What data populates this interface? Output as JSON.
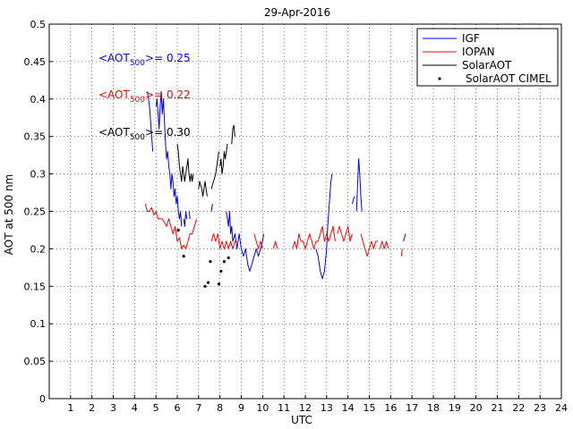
{
  "chart_data": {
    "type": "line",
    "title": "29-Apr-2016",
    "xlabel": "UTC",
    "ylabel": "AOT at 500 nm",
    "xlim": [
      0,
      24
    ],
    "ylim": [
      0,
      0.5
    ],
    "xticks": [
      1,
      2,
      3,
      4,
      5,
      6,
      7,
      8,
      9,
      10,
      11,
      12,
      13,
      14,
      15,
      16,
      17,
      18,
      19,
      20,
      21,
      22,
      23,
      24
    ],
    "yticks": [
      0,
      0.05,
      0.1,
      0.15,
      0.2,
      0.25,
      0.3,
      0.35,
      0.4,
      0.45,
      0.5
    ],
    "grid": true,
    "legend_position": "top-right",
    "colors": {
      "IGF": "#0000ff",
      "IOPAN": "#ff0000",
      "SolarAOT": "#000000",
      "SolarAOT CIMEL": "#000000"
    },
    "annotations": [
      {
        "prefix": "<AOT",
        "sub": "500",
        "suffix": ">= 0.25",
        "color": "#0000ff"
      },
      {
        "prefix": "<AOT",
        "sub": "500",
        "suffix": ">= 0.22",
        "color": "#ff0000"
      },
      {
        "prefix": "<AOT",
        "sub": "500",
        "suffix": ">= 0.30",
        "color": "#000000"
      }
    ],
    "series": [
      {
        "name": "IGF",
        "kind": "line",
        "color": "#0000ff",
        "segments": [
          [
            [
              4.6,
              0.41
            ],
            [
              4.7,
              0.39
            ],
            [
              4.75,
              0.37
            ],
            [
              4.8,
              0.35
            ],
            [
              4.85,
              0.33
            ]
          ],
          [
            [
              5.0,
              0.39
            ],
            [
              5.05,
              0.4
            ],
            [
              5.1,
              0.38
            ],
            [
              5.15,
              0.36
            ],
            [
              5.2,
              0.39
            ],
            [
              5.25,
              0.41
            ],
            [
              5.3,
              0.38
            ],
            [
              5.35,
              0.4
            ],
            [
              5.4,
              0.37
            ],
            [
              5.45,
              0.34
            ],
            [
              5.5,
              0.32
            ],
            [
              5.55,
              0.33
            ],
            [
              5.6,
              0.31
            ],
            [
              5.65,
              0.3
            ],
            [
              5.7,
              0.28
            ],
            [
              5.75,
              0.3
            ],
            [
              5.8,
              0.29
            ],
            [
              5.85,
              0.27
            ],
            [
              5.9,
              0.28
            ],
            [
              5.95,
              0.26
            ],
            [
              6.0,
              0.27
            ],
            [
              6.05,
              0.25
            ],
            [
              6.1,
              0.24
            ],
            [
              6.15,
              0.25
            ],
            [
              6.2,
              0.23
            ]
          ],
          [
            [
              6.3,
              0.24
            ],
            [
              6.35,
              0.23
            ],
            [
              6.4,
              0.25
            ],
            [
              6.45,
              0.24
            ]
          ],
          [
            [
              6.55,
              0.25
            ],
            [
              6.6,
              0.24
            ]
          ],
          [
            [
              7.6,
              0.25
            ],
            [
              7.65,
              0.26
            ]
          ],
          [
            [
              8.3,
              0.25
            ],
            [
              8.35,
              0.24
            ],
            [
              8.4,
              0.23
            ],
            [
              8.45,
              0.25
            ],
            [
              8.5,
              0.22
            ],
            [
              8.55,
              0.23
            ],
            [
              8.6,
              0.21
            ],
            [
              8.7,
              0.22
            ],
            [
              8.8,
              0.2
            ],
            [
              8.9,
              0.22
            ],
            [
              9.0,
              0.2
            ],
            [
              9.1,
              0.19
            ],
            [
              9.2,
              0.2
            ],
            [
              9.3,
              0.18
            ],
            [
              9.4,
              0.17
            ],
            [
              9.5,
              0.18
            ],
            [
              9.6,
              0.19
            ],
            [
              9.7,
              0.2
            ],
            [
              9.8,
              0.19
            ],
            [
              9.9,
              0.2
            ],
            [
              10.0,
              0.21
            ],
            [
              10.05,
              0.22
            ]
          ],
          [
            [
              12.5,
              0.2
            ],
            [
              12.6,
              0.19
            ],
            [
              12.7,
              0.17
            ],
            [
              12.8,
              0.16
            ],
            [
              12.9,
              0.17
            ],
            [
              13.0,
              0.2
            ],
            [
              13.05,
              0.23
            ],
            [
              13.1,
              0.25
            ],
            [
              13.15,
              0.27
            ],
            [
              13.2,
              0.29
            ],
            [
              13.25,
              0.3
            ]
          ],
          [
            [
              14.2,
              0.26
            ],
            [
              14.3,
              0.27
            ]
          ],
          [
            [
              14.4,
              0.25
            ],
            [
              14.5,
              0.32
            ],
            [
              14.55,
              0.3
            ],
            [
              14.6,
              0.27
            ],
            [
              14.65,
              0.25
            ]
          ],
          [
            [
              16.6,
              0.21
            ],
            [
              16.7,
              0.22
            ]
          ]
        ]
      },
      {
        "name": "IOPAN",
        "kind": "line",
        "color": "#ff0000",
        "segments": [
          [
            [
              4.5,
              0.26
            ],
            [
              4.6,
              0.25
            ],
            [
              4.7,
              0.25
            ],
            [
              4.8,
              0.255
            ],
            [
              4.9,
              0.245
            ],
            [
              5.0,
              0.25
            ],
            [
              5.1,
              0.24
            ],
            [
              5.2,
              0.24
            ],
            [
              5.3,
              0.24
            ],
            [
              5.4,
              0.235
            ],
            [
              5.5,
              0.23
            ],
            [
              5.6,
              0.24
            ],
            [
              5.7,
              0.23
            ],
            [
              5.8,
              0.22
            ],
            [
              5.9,
              0.23
            ],
            [
              6.0,
              0.21
            ],
            [
              6.1,
              0.215
            ],
            [
              6.2,
              0.2
            ],
            [
              6.3,
              0.205
            ],
            [
              6.4,
              0.2
            ],
            [
              6.5,
              0.21
            ],
            [
              6.6,
              0.22
            ],
            [
              6.7,
              0.22
            ],
            [
              6.8,
              0.23
            ],
            [
              6.9,
              0.24
            ]
          ],
          [
            [
              7.6,
              0.21
            ],
            [
              7.7,
              0.22
            ],
            [
              7.8,
              0.21
            ],
            [
              7.9,
              0.22
            ],
            [
              8.0,
              0.2
            ],
            [
              8.1,
              0.21
            ],
            [
              8.2,
              0.2
            ],
            [
              8.3,
              0.21
            ],
            [
              8.4,
              0.2
            ],
            [
              8.5,
              0.21
            ],
            [
              8.6,
              0.2
            ],
            [
              8.7,
              0.21
            ],
            [
              8.8,
              0.21
            ]
          ],
          [
            [
              9.6,
              0.22
            ],
            [
              9.7,
              0.21
            ],
            [
              9.8,
              0.2
            ],
            [
              9.9,
              0.21
            ],
            [
              10.0,
              0.2
            ]
          ],
          [
            [
              10.5,
              0.2
            ],
            [
              10.6,
              0.21
            ],
            [
              10.7,
              0.2
            ]
          ],
          [
            [
              11.4,
              0.2
            ],
            [
              11.5,
              0.21
            ],
            [
              11.6,
              0.2
            ],
            [
              11.7,
              0.22
            ],
            [
              11.8,
              0.21
            ],
            [
              11.9,
              0.21
            ],
            [
              12.0,
              0.2
            ],
            [
              12.1,
              0.21
            ],
            [
              12.2,
              0.22
            ],
            [
              12.3,
              0.21
            ],
            [
              12.4,
              0.2
            ],
            [
              12.5,
              0.21
            ],
            [
              12.6,
              0.21
            ],
            [
              12.7,
              0.22
            ],
            [
              12.8,
              0.23
            ],
            [
              12.9,
              0.21
            ],
            [
              13.0,
              0.22
            ],
            [
              13.1,
              0.21
            ],
            [
              13.2,
              0.22
            ],
            [
              13.3,
              0.23
            ],
            [
              13.4,
              0.21
            ]
          ],
          [
            [
              13.5,
              0.22
            ],
            [
              13.6,
              0.23
            ],
            [
              13.7,
              0.22
            ],
            [
              13.8,
              0.21
            ],
            [
              13.9,
              0.22
            ],
            [
              14.0,
              0.23
            ],
            [
              14.1,
              0.21
            ],
            [
              14.2,
              0.22
            ]
          ],
          [
            [
              14.6,
              0.22
            ],
            [
              14.7,
              0.21
            ],
            [
              14.8,
              0.2
            ],
            [
              14.9,
              0.19
            ],
            [
              15.0,
              0.2
            ],
            [
              15.1,
              0.21
            ],
            [
              15.2,
              0.2
            ],
            [
              15.3,
              0.21
            ],
            [
              15.4,
              0.21
            ]
          ],
          [
            [
              15.5,
              0.2
            ],
            [
              15.6,
              0.21
            ],
            [
              15.7,
              0.2
            ],
            [
              15.8,
              0.21
            ],
            [
              15.9,
              0.2
            ]
          ],
          [
            [
              16.5,
              0.19
            ],
            [
              16.55,
              0.2
            ]
          ]
        ]
      },
      {
        "name": "SolarAOT",
        "kind": "line",
        "color": "#000000",
        "segments": [
          [
            [
              6.0,
              0.34
            ],
            [
              6.05,
              0.33
            ],
            [
              6.1,
              0.31
            ],
            [
              6.15,
              0.3
            ],
            [
              6.2,
              0.29
            ],
            [
              6.25,
              0.31
            ],
            [
              6.3,
              0.3
            ],
            [
              6.35,
              0.29
            ],
            [
              6.4,
              0.3
            ],
            [
              6.45,
              0.31
            ],
            [
              6.5,
              0.32
            ],
            [
              6.55,
              0.3
            ],
            [
              6.6,
              0.29
            ],
            [
              6.65,
              0.3
            ],
            [
              6.7,
              0.29
            ],
            [
              6.75,
              0.3
            ]
          ],
          [
            [
              7.0,
              0.28
            ],
            [
              7.05,
              0.29
            ],
            [
              7.1,
              0.285
            ],
            [
              7.15,
              0.28
            ],
            [
              7.2,
              0.27
            ],
            [
              7.25,
              0.28
            ],
            [
              7.3,
              0.29
            ],
            [
              7.35,
              0.28
            ],
            [
              7.4,
              0.27
            ]
          ],
          [
            [
              7.6,
              0.28
            ],
            [
              7.7,
              0.29
            ],
            [
              7.8,
              0.3
            ],
            [
              7.85,
              0.31
            ],
            [
              7.9,
              0.32
            ],
            [
              7.95,
              0.33
            ]
          ],
          [
            [
              8.0,
              0.31
            ],
            [
              8.05,
              0.32
            ],
            [
              8.1,
              0.3
            ],
            [
              8.15,
              0.31
            ],
            [
              8.2,
              0.33
            ],
            [
              8.25,
              0.32
            ],
            [
              8.3,
              0.33
            ],
            [
              8.35,
              0.34
            ]
          ],
          [
            [
              8.55,
              0.34
            ],
            [
              8.6,
              0.36
            ],
            [
              8.65,
              0.365
            ],
            [
              8.7,
              0.35
            ]
          ]
        ]
      },
      {
        "name": "SolarAOT CIMEL",
        "kind": "scatter",
        "color": "#000000",
        "points": [
          [
            6.05,
            0.225
          ],
          [
            6.3,
            0.19
          ],
          [
            7.3,
            0.15
          ],
          [
            7.45,
            0.155
          ],
          [
            7.55,
            0.183
          ],
          [
            7.95,
            0.153
          ],
          [
            8.05,
            0.17
          ],
          [
            8.2,
            0.183
          ],
          [
            8.4,
            0.188
          ]
        ]
      }
    ]
  }
}
